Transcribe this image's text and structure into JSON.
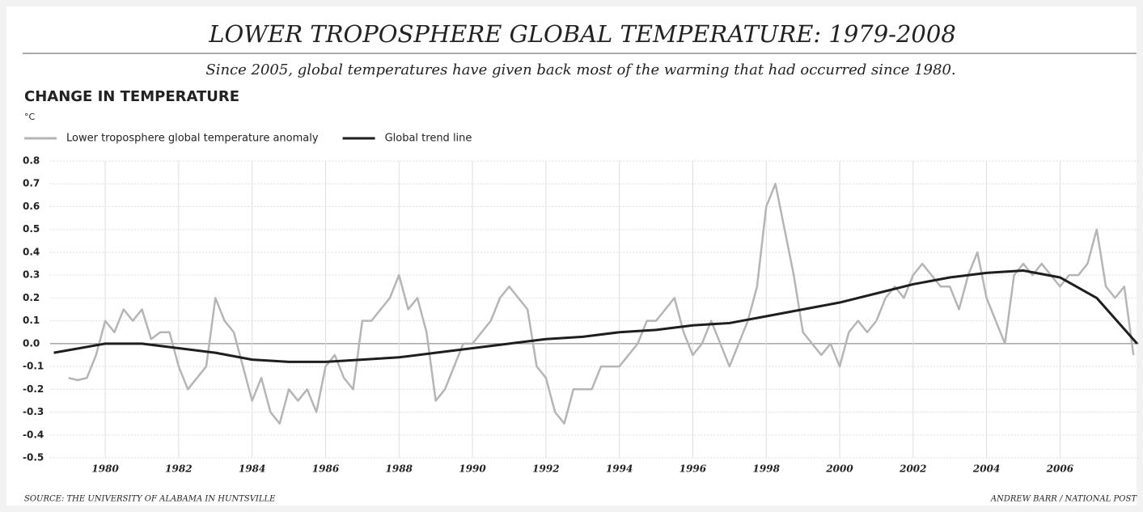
{
  "chart_data": {
    "type": "line",
    "title": "LOWER TROPOSPHERE GLOBAL TEMPERATURE: 1979-2008",
    "subtitle": "Since 2005, global temperatures have given back most of the warming that had occurred since 1980.",
    "y_axis_title": "CHANGE IN TEMPERATURE",
    "y_unit": "°C",
    "source": "SOURCE: THE UNIVERSITY OF ALABAMA IN HUNTSVILLE",
    "credit": "ANDREW BARR / NATIONAL POST",
    "xlim": [
      1978.5,
      2008.15
    ],
    "ylim": [
      -0.5,
      0.8
    ],
    "xticks": [
      1980,
      1982,
      1984,
      1986,
      1988,
      1990,
      1992,
      1994,
      1996,
      1998,
      2000,
      2002,
      2004,
      2006
    ],
    "yticks": [
      0.8,
      0.7,
      0.6,
      0.5,
      0.4,
      0.3,
      0.2,
      0.1,
      {
        "value": 0,
        "label": "0.0"
      },
      -0.1,
      -0.2,
      -0.3,
      -0.4,
      -0.5
    ],
    "grid": true,
    "legend": "top-left",
    "series": [
      {
        "name": "Lower troposphere global temperature anomaly",
        "color": "#b5b5b5",
        "x": [
          1979,
          1979.25,
          1979.5,
          1979.75,
          1980,
          1980.25,
          1980.5,
          1980.75,
          1981,
          1981.25,
          1981.5,
          1981.75,
          1982,
          1982.25,
          1982.5,
          1982.75,
          1983,
          1983.25,
          1983.5,
          1983.75,
          1984,
          1984.25,
          1984.5,
          1984.75,
          1985,
          1985.25,
          1985.5,
          1985.75,
          1986,
          1986.25,
          1986.5,
          1986.75,
          1987,
          1987.25,
          1987.5,
          1987.75,
          1988,
          1988.25,
          1988.5,
          1988.75,
          1989,
          1989.25,
          1989.5,
          1989.75,
          1990,
          1990.25,
          1990.5,
          1990.75,
          1991,
          1991.25,
          1991.5,
          1991.75,
          1992,
          1992.25,
          1992.5,
          1992.75,
          1993,
          1993.25,
          1993.5,
          1993.75,
          1994,
          1994.25,
          1994.5,
          1994.75,
          1995,
          1995.25,
          1995.5,
          1995.75,
          1996,
          1996.25,
          1996.5,
          1996.75,
          1997,
          1997.25,
          1997.5,
          1997.75,
          1998,
          1998.25,
          1998.5,
          1998.75,
          1999,
          1999.25,
          1999.5,
          1999.75,
          2000,
          2000.25,
          2000.5,
          2000.75,
          2001,
          2001.25,
          2001.5,
          2001.75,
          2002,
          2002.25,
          2002.5,
          2002.75,
          2003,
          2003.25,
          2003.5,
          2003.75,
          2004,
          2004.25,
          2004.5,
          2004.75,
          2005,
          2005.25,
          2005.5,
          2005.75,
          2006,
          2006.25,
          2006.5,
          2006.75,
          2007,
          2007.25,
          2007.5,
          2007.75,
          2008
        ],
        "values": [
          -0.15,
          -0.16,
          -0.15,
          -0.05,
          0.1,
          0.05,
          0.15,
          0.1,
          0.15,
          0.02,
          0.05,
          0.05,
          -0.1,
          -0.2,
          -0.15,
          -0.1,
          0.2,
          0.1,
          0.05,
          -0.1,
          -0.25,
          -0.15,
          -0.3,
          -0.35,
          -0.2,
          -0.25,
          -0.2,
          -0.3,
          -0.1,
          -0.05,
          -0.15,
          -0.2,
          0.1,
          0.1,
          0.15,
          0.2,
          0.3,
          0.15,
          0.2,
          0.05,
          -0.25,
          -0.2,
          -0.1,
          0.0,
          0.0,
          0.05,
          0.1,
          0.2,
          0.25,
          0.2,
          0.15,
          -0.1,
          -0.15,
          -0.3,
          -0.35,
          -0.2,
          -0.2,
          -0.2,
          -0.1,
          -0.1,
          -0.1,
          -0.05,
          0.0,
          0.1,
          0.1,
          0.15,
          0.2,
          0.05,
          -0.05,
          0.0,
          0.1,
          0.0,
          -0.1,
          0.0,
          0.1,
          0.25,
          0.6,
          0.7,
          0.5,
          0.3,
          0.05,
          0.0,
          -0.05,
          0.0,
          -0.1,
          0.05,
          0.1,
          0.05,
          0.1,
          0.2,
          0.25,
          0.2,
          0.3,
          0.35,
          0.3,
          0.25,
          0.25,
          0.15,
          0.3,
          0.4,
          0.2,
          0.1,
          0.0,
          0.3,
          0.35,
          0.3,
          0.35,
          0.3,
          0.25,
          0.3,
          0.3,
          0.35,
          0.5,
          0.25,
          0.2,
          0.25,
          -0.05
        ]
      },
      {
        "name": "Global trend line",
        "color": "#1e1e1e",
        "x": [
          1978.6,
          1980,
          1981,
          1982,
          1983,
          1984,
          1985,
          1986,
          1987,
          1988,
          1989,
          1990,
          1991,
          1992,
          1993,
          1994,
          1995,
          1996,
          1997,
          1998,
          1999,
          2000,
          2001,
          2002,
          2003,
          2004,
          2005,
          2006,
          2007,
          2008.1
        ],
        "values": [
          -0.04,
          0.0,
          0.0,
          -0.02,
          -0.04,
          -0.07,
          -0.08,
          -0.08,
          -0.07,
          -0.06,
          -0.04,
          -0.02,
          0.0,
          0.02,
          0.03,
          0.05,
          0.06,
          0.08,
          0.09,
          0.12,
          0.15,
          0.18,
          0.22,
          0.26,
          0.29,
          0.31,
          0.32,
          0.29,
          0.2,
          0.0
        ]
      }
    ]
  }
}
